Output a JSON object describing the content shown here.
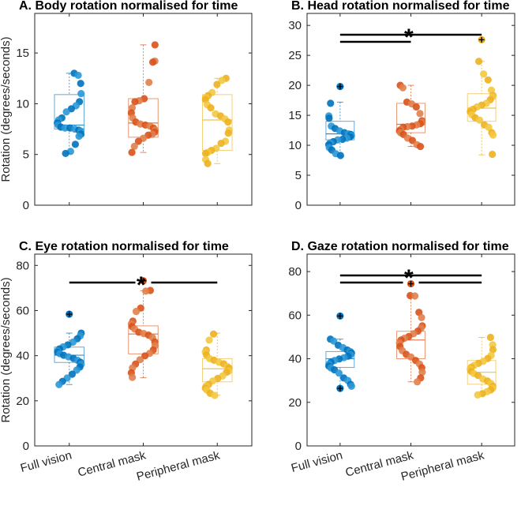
{
  "chart_data": [
    {
      "type": "box-scatter",
      "title": "A. Body rotation normalised for time",
      "ylabel": "Rotation (degrees/seconds)",
      "ylim": [
        0,
        18.9
      ],
      "yticks": [
        0,
        5,
        10,
        15
      ],
      "categories": [
        "Full vision",
        "Central mask",
        "Peripheral mask"
      ],
      "show_xlabels": false,
      "boxes": [
        {
          "min": 5.1,
          "q1": 7.5,
          "median": 7.9,
          "q3": 10.9,
          "max": 13.0
        },
        {
          "min": 5.2,
          "q1": 6.7,
          "median": 8.1,
          "q3": 10.5,
          "max": 15.8
        },
        {
          "min": 4.1,
          "q1": 5.4,
          "median": 8.4,
          "q3": 10.9,
          "max": 12.5
        }
      ],
      "points": [
        [
          13.0,
          12.8,
          12.0,
          11.0,
          10.2,
          9.8,
          9.5,
          9.2,
          8.6,
          8.4,
          8.1,
          7.9,
          7.7,
          7.6,
          7.6,
          7.5,
          7.4,
          7.3,
          7.0,
          6.8,
          6.0,
          5.3,
          5.1
        ],
        [
          15.8,
          14.2,
          14.1,
          12.1,
          10.5,
          10.3,
          10.2,
          9.6,
          9.1,
          8.6,
          8.2,
          8.0,
          7.9,
          7.8,
          7.6,
          7.4,
          7.2,
          7.0,
          6.9,
          6.6,
          6.3,
          5.8,
          5.2
        ],
        [
          12.5,
          12.3,
          11.9,
          11.1,
          10.8,
          10.6,
          10.4,
          9.9,
          9.6,
          9.0,
          8.8,
          8.5,
          8.2,
          7.4,
          7.1,
          6.3,
          6.1,
          5.6,
          5.4,
          5.2,
          5.1,
          4.5,
          4.1
        ]
      ],
      "outliers": [
        [],
        [],
        []
      ],
      "brackets": [],
      "significance": ""
    },
    {
      "type": "box-scatter",
      "title": "B. Head rotation normalised for time",
      "ylabel": "",
      "ylim": [
        0,
        32
      ],
      "yticks": [
        0,
        5,
        10,
        15,
        20,
        25,
        30
      ],
      "categories": [
        "Full vision",
        "Central mask",
        "Peripheral mask"
      ],
      "show_xlabels": false,
      "boxes": [
        {
          "min": 8.2,
          "q1": 10.9,
          "median": 11.9,
          "q3": 14.0,
          "max": 17.2
        },
        {
          "min": 9.8,
          "q1": 12.1,
          "median": 13.5,
          "q3": 17.0,
          "max": 20.0
        },
        {
          "min": 8.4,
          "q1": 14.0,
          "median": 16.2,
          "q3": 18.6,
          "max": 24.0
        }
      ],
      "points": [
        [
          17.0,
          14.9,
          14.5,
          13.2,
          12.8,
          12.4,
          12.1,
          11.9,
          11.8,
          11.6,
          11.4,
          11.2,
          11.0,
          10.9,
          10.6,
          10.4,
          10.1,
          9.6,
          9.2,
          8.6,
          8.3
        ],
        [
          20.0,
          19.6,
          17.2,
          16.9,
          16.4,
          15.3,
          14.1,
          13.8,
          13.6,
          13.4,
          13.2,
          13.1,
          13.0,
          12.6,
          12.4,
          12.1,
          11.8,
          11.2,
          10.8,
          10.1,
          9.8
        ],
        [
          24.0,
          21.9,
          20.9,
          19.2,
          18.3,
          18.1,
          17.6,
          17.0,
          16.7,
          16.4,
          16.0,
          15.8,
          15.6,
          15.1,
          14.6,
          14.2,
          13.4,
          13.0,
          12.1,
          11.7,
          8.5
        ]
      ],
      "outliers": [
        [
          19.8
        ],
        [],
        [
          27.6
        ]
      ],
      "brackets": [
        {
          "from": 0,
          "to": 1,
          "level": 1
        },
        {
          "from": 0,
          "to": 2,
          "level": 2
        }
      ],
      "significance": "*"
    },
    {
      "type": "box-scatter",
      "title": "C. Eye rotation normalised for time",
      "ylabel": "Rotation (degrees/seconds)",
      "ylim": [
        0,
        85
      ],
      "yticks": [
        0,
        20,
        40,
        60,
        80
      ],
      "categories": [
        "Full vision",
        "Central mask",
        "Peripheral mask"
      ],
      "show_xlabels": true,
      "boxes": [
        {
          "min": 27.2,
          "q1": 37.0,
          "median": 40.2,
          "q3": 43.8,
          "max": 50.0
        },
        {
          "min": 30.2,
          "q1": 40.8,
          "median": 49.6,
          "q3": 53.2,
          "max": 68.8
        },
        {
          "min": 22.5,
          "q1": 28.4,
          "median": 34.2,
          "q3": 38.7,
          "max": 50.0
        }
      ],
      "points": [
        [
          50.0,
          48.8,
          47.5,
          46.0,
          44.8,
          43.9,
          43.0,
          42.1,
          41.5,
          40.9,
          40.2,
          39.5,
          38.8,
          37.9,
          37.1,
          36.2,
          35.0,
          33.6,
          31.8,
          30.1,
          28.6,
          27.2
        ],
        [
          68.9,
          68.6,
          61.1,
          59.6,
          55.3,
          54.1,
          52.9,
          51.8,
          50.4,
          49.8,
          49.1,
          48.0,
          46.1,
          44.4,
          42.5,
          41.0,
          39.9,
          38.2,
          36.3,
          34.6,
          32.4,
          30.4
        ],
        [
          49.6,
          46.9,
          42.5,
          41.6,
          40.3,
          38.7,
          38.0,
          37.1,
          36.4,
          35.2,
          34.5,
          33.2,
          32.6,
          31.0,
          29.9,
          28.8,
          27.3,
          26.5,
          25.6,
          24.8,
          23.3,
          22.4
        ]
      ],
      "outliers": [
        [
          58.4
        ],
        [
          73.2
        ],
        []
      ],
      "brackets": [
        {
          "from": 0,
          "to": 1,
          "level": 1
        },
        {
          "from": 1,
          "to": 2,
          "level": 1
        }
      ],
      "significance": "*"
    },
    {
      "type": "box-scatter",
      "title": "D. Gaze rotation normalised for time",
      "ylabel": "",
      "ylim": [
        0,
        88
      ],
      "yticks": [
        0,
        20,
        40,
        60,
        80
      ],
      "categories": [
        "Full vision",
        "Central mask",
        "Peripheral mask"
      ],
      "show_xlabels": true,
      "boxes": [
        {
          "min": 27.4,
          "q1": 36.0,
          "median": 40.0,
          "q3": 43.3,
          "max": 49.0
        },
        {
          "min": 29.4,
          "q1": 40.0,
          "median": 48.6,
          "q3": 52.6,
          "max": 69.0
        },
        {
          "min": 23.4,
          "q1": 28.3,
          "median": 33.8,
          "q3": 39.2,
          "max": 49.8
        }
      ],
      "points": [
        [
          49.0,
          48.1,
          46.2,
          45.1,
          44.0,
          43.3,
          42.6,
          41.8,
          41.2,
          40.5,
          39.9,
          39.2,
          38.4,
          37.5,
          36.6,
          35.8,
          34.9,
          33.4,
          31.2,
          30.0,
          28.2,
          27.4
        ],
        [
          69.0,
          68.8,
          61.3,
          58.9,
          55.1,
          54.0,
          52.7,
          51.5,
          50.2,
          49.4,
          48.6,
          47.2,
          45.6,
          43.7,
          42.0,
          40.8,
          39.2,
          37.6,
          35.9,
          33.8,
          31.2,
          29.4
        ],
        [
          49.8,
          46.4,
          44.2,
          41.5,
          40.1,
          38.8,
          37.9,
          37.0,
          36.1,
          35.3,
          34.2,
          33.2,
          32.3,
          30.7,
          29.8,
          28.6,
          27.4,
          26.5,
          25.7,
          24.9,
          24.0,
          23.4
        ]
      ],
      "outliers": [
        [
          59.6,
          26.4
        ],
        [
          74.4
        ],
        []
      ],
      "brackets": [
        {
          "from": 0,
          "to": 1,
          "level": 1
        },
        {
          "from": 1,
          "to": 2,
          "level": 1
        },
        {
          "from": 0,
          "to": 2,
          "level": 2
        }
      ],
      "significance": "*"
    }
  ],
  "colors": {
    "groups": [
      "#0072bd",
      "#d95319",
      "#edb120"
    ],
    "groups_light": [
      "#2a98d6",
      "#e07f4c",
      "#f2c940"
    ],
    "axis": "#262626",
    "outlier_center": "#000000"
  }
}
